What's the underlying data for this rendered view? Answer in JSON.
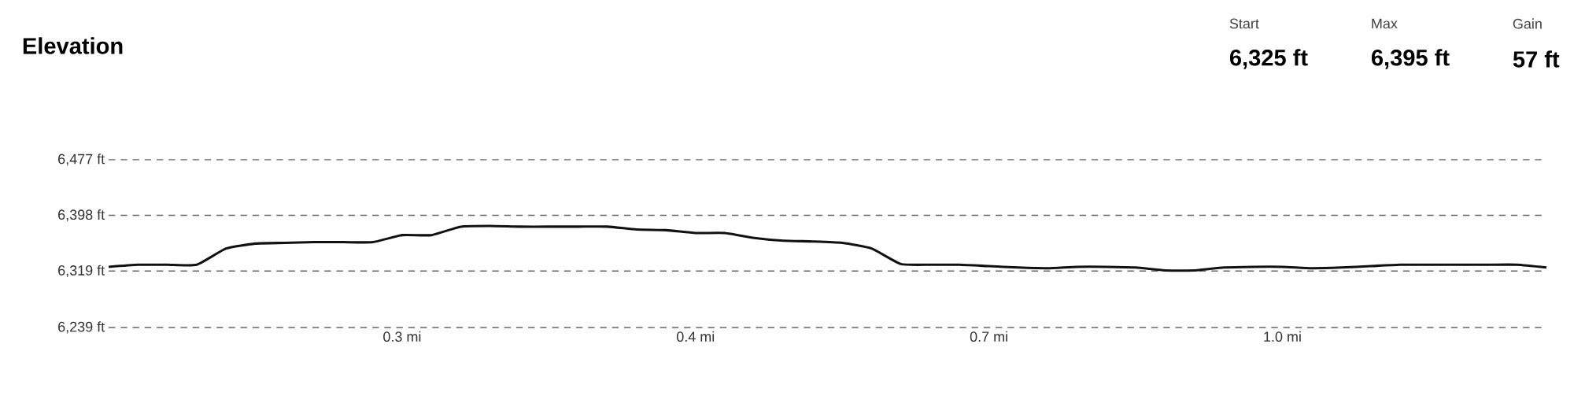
{
  "chart_data": {
    "type": "line",
    "title": "Elevation",
    "annotations": [
      "Start",
      "6,325 ft",
      "Max",
      "6,395 ft",
      "Gain",
      "57 ft"
    ],
    "categories": [
      null,
      null,
      null,
      null,
      null,
      null,
      null,
      null,
      null,
      null,
      "0.3 mi",
      null,
      null,
      null,
      null,
      null,
      null,
      null,
      null,
      null,
      "0.4 mi",
      null,
      null,
      null,
      null,
      null,
      null,
      null,
      null,
      null,
      "0.7 mi",
      null,
      null,
      null,
      null,
      null,
      null,
      null,
      null,
      null,
      "1.0 mi",
      null,
      null,
      null,
      null,
      null,
      null,
      null,
      null,
      null
    ],
    "values": [
      6325,
      6328,
      6328,
      6328,
      6351,
      6358,
      6359,
      6360,
      6360,
      6360,
      6370,
      6370,
      6382,
      6383,
      6382,
      6382,
      6382,
      6382,
      6378,
      6377,
      6373,
      6373,
      6366,
      6362,
      6361,
      6359,
      6351,
      6329,
      6328,
      6328,
      6326,
      6324,
      6323,
      6325,
      6325,
      6324,
      6320,
      6320,
      6324,
      6325,
      6325,
      6323,
      6324,
      6326,
      6328,
      6328,
      6328,
      6328,
      6328,
      6324
    ],
    "color": "#111111",
    "ylim": [
      6239,
      6477
    ],
    "yticks": [
      {
        "value": 6239,
        "label": "6,239 ft"
      },
      {
        "value": 6319,
        "label": "6,319 ft"
      },
      {
        "value": 6398,
        "label": "6,398 ft"
      },
      {
        "value": 6477,
        "label": "6,477 ft"
      }
    ],
    "grid": "y"
  }
}
